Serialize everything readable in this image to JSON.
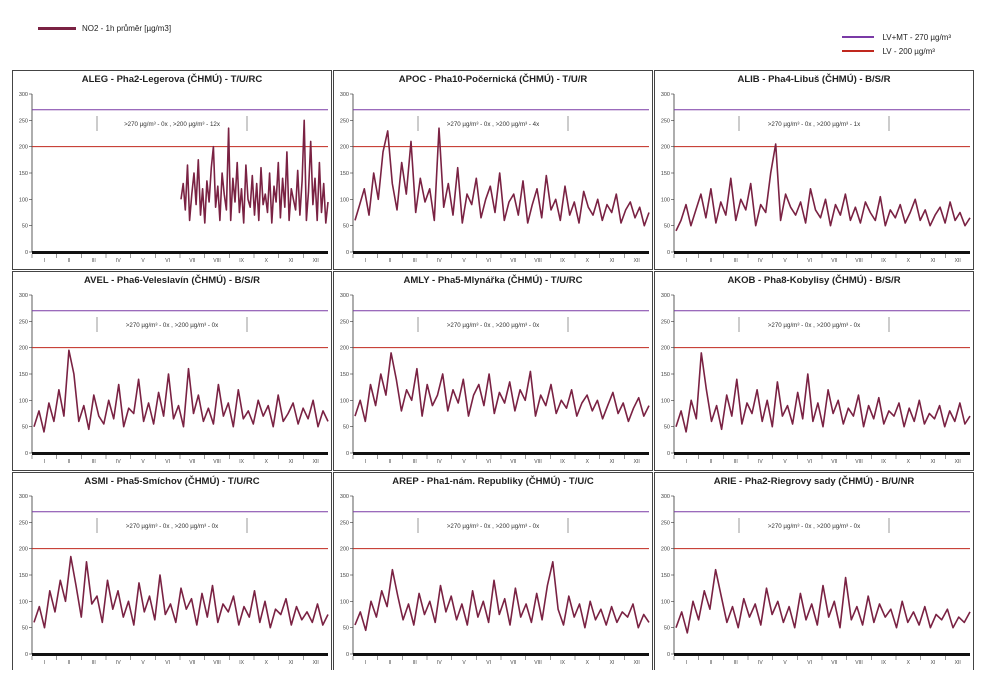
{
  "legend": {
    "series_label": "NO2 - 1h průměr [µg/m3]",
    "series_color": "#7a2243",
    "limits": [
      {
        "label": "LV+MT - 270 µg/m³",
        "color": "#7a3aa6"
      },
      {
        "label": "LV   -  200 µg/m³",
        "color": "#c0281e"
      }
    ]
  },
  "chart_data": [
    {
      "type": "line",
      "title": "ALEG - Pha2-Legerova (ČHMÚ) - T/U/RC",
      "y_ticks": [
        0,
        50,
        100,
        150,
        200,
        250,
        300
      ],
      "ylim": [
        0,
        300
      ],
      "x_ticks": [
        "I",
        "II",
        "III",
        "IV",
        "V",
        "VI",
        "VII",
        "VIII",
        "IX",
        "X",
        "XI",
        "XII"
      ],
      "limits": [
        270,
        200
      ],
      "annotation": ">270 µg/m³ - 0x ,  >200 µg/m³ - 12x",
      "data_start_month": 6,
      "series": [
        {
          "name": "NO2 - 1h průměr",
          "values": [
            100,
            130,
            80,
            165,
            60,
            110,
            150,
            90,
            175,
            70,
            120,
            55,
            135,
            95,
            160,
            200,
            85,
            125,
            60,
            150,
            110,
            80,
            235,
            60,
            140,
            95,
            170,
            75,
            120,
            55,
            165,
            100,
            85,
            145,
            70,
            130,
            60,
            160,
            90,
            110,
            75,
            150,
            55,
            125,
            95,
            170,
            65,
            140,
            85,
            190,
            60,
            120,
            100,
            80,
            155,
            70,
            135,
            250,
            60,
            115,
            210,
            90,
            140,
            60,
            170,
            75,
            130,
            55,
            95
          ]
        }
      ]
    },
    {
      "type": "line",
      "title": "APOC - Pha10-Počernická (ČHMÚ) - T/U/R",
      "y_ticks": [
        0,
        50,
        100,
        150,
        200,
        250,
        300
      ],
      "ylim": [
        0,
        300
      ],
      "x_ticks": [
        "I",
        "II",
        "III",
        "IV",
        "V",
        "VI",
        "VII",
        "VIII",
        "IX",
        "X",
        "XI",
        "XII"
      ],
      "limits": [
        270,
        200
      ],
      "annotation": ">270 µg/m³ - 0x ,  >200 µg/m³ - 4x",
      "data_start_month": 0,
      "series": [
        {
          "name": "NO2 - 1h průměr",
          "values": [
            60,
            90,
            120,
            70,
            150,
            100,
            190,
            230,
            130,
            80,
            170,
            110,
            210,
            75,
            140,
            95,
            120,
            60,
            235,
            85,
            130,
            70,
            160,
            55,
            110,
            90,
            140,
            65,
            100,
            125,
            75,
            150,
            60,
            95,
            110,
            70,
            135,
            55,
            90,
            120,
            65,
            145,
            80,
            100,
            60,
            125,
            70,
            95,
            55,
            115,
            85,
            70,
            100,
            60,
            90,
            75,
            110,
            55,
            80,
            95,
            65,
            85,
            50,
            75
          ]
        }
      ]
    },
    {
      "type": "line",
      "title": "ALIB - Pha4-Libuš (ČHMÚ) - B/S/R",
      "y_ticks": [
        0,
        50,
        100,
        150,
        200,
        250,
        300
      ],
      "ylim": [
        0,
        300
      ],
      "x_ticks": [
        "I",
        "II",
        "III",
        "IV",
        "V",
        "VI",
        "VII",
        "VIII",
        "IX",
        "X",
        "XI",
        "XII"
      ],
      "limits": [
        270,
        200
      ],
      "annotation": ">270 µg/m³ - 0x ,  >200 µg/m³ - 1x",
      "data_start_month": 0,
      "series": [
        {
          "name": "NO2 - 1h průměr",
          "values": [
            40,
            60,
            90,
            50,
            80,
            110,
            65,
            120,
            55,
            95,
            70,
            140,
            60,
            100,
            80,
            130,
            50,
            90,
            75,
            150,
            205,
            60,
            110,
            85,
            70,
            95,
            55,
            120,
            80,
            65,
            100,
            50,
            90,
            70,
            110,
            60,
            85,
            55,
            95,
            75,
            60,
            105,
            50,
            80,
            65,
            90,
            55,
            75,
            100,
            60,
            80,
            50,
            70,
            85,
            55,
            95,
            60,
            75,
            50,
            65
          ]
        }
      ]
    },
    {
      "type": "line",
      "title": "AVEL - Pha6-Veleslavín (ČHMÚ) - B/S/R",
      "y_ticks": [
        0,
        50,
        100,
        150,
        200,
        250,
        300
      ],
      "ylim": [
        0,
        300
      ],
      "x_ticks": [
        "I",
        "II",
        "III",
        "IV",
        "V",
        "VI",
        "VII",
        "VIII",
        "IX",
        "X",
        "XI",
        "XII"
      ],
      "limits": [
        270,
        200
      ],
      "annotation": ">270 µg/m³ - 0x ,  >200 µg/m³ - 0x",
      "data_start_month": 0,
      "series": [
        {
          "name": "NO2 - 1h průměr",
          "values": [
            50,
            80,
            40,
            95,
            60,
            120,
            70,
            195,
            150,
            60,
            90,
            45,
            110,
            70,
            55,
            100,
            65,
            130,
            50,
            85,
            75,
            140,
            60,
            95,
            55,
            115,
            70,
            150,
            65,
            90,
            50,
            160,
            75,
            110,
            60,
            85,
            55,
            130,
            70,
            95,
            50,
            120,
            65,
            80,
            55,
            100,
            70,
            90,
            50,
            110,
            60,
            75,
            95,
            55,
            85,
            65,
            100,
            50,
            80,
            60
          ]
        }
      ]
    },
    {
      "type": "line",
      "title": "AMLY - Pha5-Mlynářka (ČHMÚ) - T/U/RC",
      "y_ticks": [
        0,
        50,
        100,
        150,
        200,
        250,
        300
      ],
      "ylim": [
        0,
        300
      ],
      "x_ticks": [
        "I",
        "II",
        "III",
        "IV",
        "V",
        "VI",
        "VII",
        "VIII",
        "IX",
        "X",
        "XI",
        "XII"
      ],
      "limits": [
        270,
        200
      ],
      "annotation": ">270 µg/m³ - 0x ,  >200 µg/m³ - 0x",
      "data_start_month": 0,
      "series": [
        {
          "name": "NO2 - 1h průměr",
          "values": [
            70,
            100,
            60,
            130,
            90,
            150,
            110,
            190,
            140,
            80,
            120,
            100,
            160,
            70,
            130,
            90,
            110,
            150,
            80,
            120,
            95,
            140,
            70,
            110,
            130,
            90,
            150,
            75,
            115,
            95,
            135,
            80,
            120,
            100,
            155,
            70,
            110,
            90,
            130,
            75,
            100,
            85,
            120,
            70,
            95,
            110,
            80,
            100,
            65,
            90,
            115,
            75,
            95,
            60,
            85,
            105,
            70,
            90
          ]
        }
      ]
    },
    {
      "type": "line",
      "title": "AKOB - Pha8-Kobylisy (ČHMÚ) - B/S/R",
      "y_ticks": [
        0,
        50,
        100,
        150,
        200,
        250,
        300
      ],
      "ylim": [
        0,
        300
      ],
      "x_ticks": [
        "I",
        "II",
        "III",
        "IV",
        "V",
        "VI",
        "VII",
        "VIII",
        "IX",
        "X",
        "XI",
        "XII"
      ],
      "limits": [
        270,
        200
      ],
      "annotation": ">270 µg/m³ - 0x ,  >200 µg/m³ - 0x",
      "data_start_month": 0,
      "series": [
        {
          "name": "NO2 - 1h průměr",
          "values": [
            50,
            80,
            40,
            100,
            65,
            190,
            120,
            60,
            90,
            45,
            110,
            70,
            140,
            55,
            95,
            75,
            120,
            60,
            100,
            50,
            135,
            70,
            90,
            55,
            115,
            65,
            150,
            60,
            95,
            50,
            120,
            75,
            100,
            55,
            85,
            70,
            110,
            50,
            90,
            65,
            105,
            55,
            80,
            70,
            95,
            50,
            85,
            60,
            100,
            55,
            75,
            65,
            90,
            50,
            80,
            60,
            95,
            55,
            70
          ]
        }
      ]
    },
    {
      "type": "line",
      "title": "ASMI - Pha5-Smíchov (ČHMÚ) - T/U/RC",
      "y_ticks": [
        0,
        50,
        100,
        150,
        200,
        250,
        300
      ],
      "ylim": [
        0,
        300
      ],
      "x_ticks": [
        "I",
        "II",
        "III",
        "IV",
        "V",
        "VI",
        "VII",
        "VIII",
        "IX",
        "X",
        "XI",
        "XII"
      ],
      "limits": [
        270,
        200
      ],
      "annotation": ">270 µg/m³ - 0x ,  >200 µg/m³ - 0x",
      "data_start_month": 0,
      "series": [
        {
          "name": "NO2 - 1h průměr",
          "values": [
            60,
            90,
            50,
            120,
            80,
            140,
            100,
            185,
            130,
            70,
            175,
            95,
            110,
            60,
            140,
            85,
            120,
            70,
            100,
            55,
            135,
            80,
            110,
            65,
            150,
            75,
            95,
            60,
            125,
            85,
            105,
            55,
            115,
            70,
            130,
            60,
            95,
            80,
            110,
            55,
            90,
            70,
            120,
            60,
            100,
            50,
            85,
            75,
            105,
            55,
            90,
            65,
            80,
            60,
            95,
            55,
            75
          ]
        }
      ]
    },
    {
      "type": "line",
      "title": "AREP - Pha1-nám. Republiky (ČHMÚ) - T/U/C",
      "y_ticks": [
        0,
        50,
        100,
        150,
        200,
        250,
        300
      ],
      "ylim": [
        0,
        300
      ],
      "x_ticks": [
        "I",
        "II",
        "III",
        "IV",
        "V",
        "VI",
        "VII",
        "VIII",
        "IX",
        "X",
        "XI",
        "XII"
      ],
      "limits": [
        270,
        200
      ],
      "annotation": ">270 µg/m³ - 0x ,  >200 µg/m³ - 0x",
      "data_start_month": 0,
      "series": [
        {
          "name": "NO2 - 1h průměr",
          "values": [
            55,
            80,
            45,
            100,
            70,
            120,
            90,
            160,
            110,
            65,
            95,
            55,
            115,
            75,
            100,
            60,
            130,
            80,
            110,
            65,
            95,
            55,
            120,
            70,
            100,
            60,
            140,
            75,
            105,
            55,
            125,
            70,
            95,
            60,
            115,
            65,
            130,
            175,
            85,
            55,
            110,
            70,
            95,
            50,
            100,
            65,
            85,
            55,
            90,
            60,
            80,
            70,
            95,
            50,
            75,
            60
          ]
        }
      ]
    },
    {
      "type": "line",
      "title": "ARIE - Pha2-Riegrovy sady (ČHMÚ) - B/U/NR",
      "y_ticks": [
        0,
        50,
        100,
        150,
        200,
        250,
        300
      ],
      "ylim": [
        0,
        300
      ],
      "x_ticks": [
        "I",
        "II",
        "III",
        "IV",
        "V",
        "VI",
        "VII",
        "VIII",
        "IX",
        "X",
        "XI",
        "XII"
      ],
      "limits": [
        270,
        200
      ],
      "annotation": ">270 µg/m³ - 0x ,  >200 µg/m³ - 0x",
      "data_start_month": 0,
      "series": [
        {
          "name": "NO2 - 1h průměr",
          "values": [
            50,
            80,
            40,
            100,
            65,
            120,
            85,
            160,
            110,
            60,
            90,
            50,
            105,
            70,
            95,
            55,
            125,
            75,
            100,
            60,
            90,
            50,
            115,
            65,
            95,
            55,
            130,
            70,
            100,
            50,
            145,
            65,
            90,
            55,
            110,
            60,
            95,
            70,
            85,
            50,
            100,
            60,
            80,
            55,
            90,
            50,
            75,
            65,
            85,
            50,
            70,
            60,
            80
          ]
        }
      ]
    }
  ]
}
